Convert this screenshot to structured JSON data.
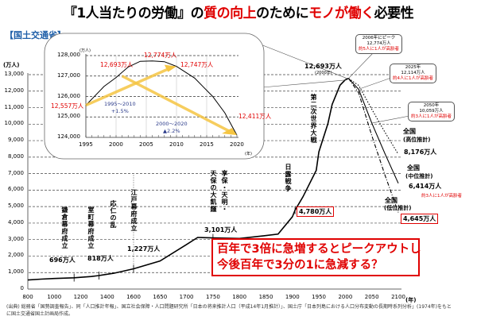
{
  "title": {
    "part1": "『1人当たりの労働』の",
    "part2": "質の向上",
    "part3": "のために",
    "part4": "モノが働く",
    "part5": "必要性"
  },
  "source_label": "【国土交通省】",
  "colors": {
    "accent_red": "#e00000",
    "source_blue": "#1f5fa8",
    "arrow_yellow": "#f5c542"
  },
  "chart_data": [
    {
      "type": "line",
      "ylabel": "(万人)",
      "xlabel": "(年)",
      "ylim": [
        0,
        13000
      ],
      "yticks": [
        "0",
        "1,000",
        "2,000",
        "3,000",
        "4,000",
        "5,000",
        "6,000",
        "7,000",
        "8,000",
        "9,000",
        "10,000",
        "11,000",
        "12,000",
        "13,000"
      ],
      "xticks": [
        "800",
        "1000",
        "1200",
        "1400",
        "1600",
        "1650",
        "1700",
        "1750",
        "1800",
        "1850",
        "1900",
        "1950",
        "2000",
        "2050",
        "2100"
      ],
      "grid": "horizontal dashed",
      "series": [
        {
          "name": "",
          "style": "solid",
          "points": [
            [
              800,
              551
            ],
            [
              900,
              600
            ],
            [
              1000,
              640
            ],
            [
              1150,
              684
            ],
            [
              1280,
              760
            ],
            [
              1338,
              818
            ],
            [
              1450,
              960
            ],
            [
              1600,
              1227
            ],
            [
              1650,
              1700
            ],
            [
              1700,
              2700
            ],
            [
              1721,
              3128
            ],
            [
              1750,
              3101
            ],
            [
              1800,
              3065
            ],
            [
              1846,
              3230
            ],
            [
              1873,
              3330
            ],
            [
              1900,
              4385
            ],
            [
              1905,
              4780
            ],
            [
              1920,
              5596
            ],
            [
              1945,
              7200
            ],
            [
              1950,
              8320
            ],
            [
              1967,
              10020
            ],
            [
              1975,
              11194
            ],
            [
              1990,
              12361
            ],
            [
              2000,
              12693
            ],
            [
              2006,
              12774
            ]
          ]
        },
        {
          "name": "全国（中位推計）",
          "style": "solid",
          "points": [
            [
              2006,
              12774
            ],
            [
              2025,
              12114
            ],
            [
              2050,
              10059
            ],
            [
              2075,
              8200
            ],
            [
              2100,
              6414
            ]
          ]
        },
        {
          "name": "全国（高位推計）",
          "style": "dotted",
          "points": [
            [
              2006,
              12774
            ],
            [
              2025,
              12350
            ],
            [
              2050,
              10900
            ],
            [
              2075,
              9500
            ],
            [
              2100,
              8176
            ]
          ]
        },
        {
          "name": "全国（低位推計）",
          "style": "dashdot",
          "points": [
            [
              2006,
              12774
            ],
            [
              2025,
              11900
            ],
            [
              2050,
              9300
            ],
            [
              2075,
              6900
            ],
            [
              2100,
              4645
            ]
          ]
        }
      ],
      "annotations": {
        "kamakura": "鎌倉幕府成立",
        "muromachi": "室町幕府成立",
        "onin": "応仁の乱",
        "edo": "江戸幕府成立",
        "famine_1": "享保・天明・",
        "famine_2": "天保の大飢饉",
        "russo_japanese": "日露戦争",
        "ww2": "第二次世界大戦",
        "v696": "696万人",
        "v818": "818万人",
        "v1227": "1,227万人",
        "v3101": "3,101万人",
        "v4780": "4,780万人",
        "v12693": "12,693万人",
        "v12693_year": "(2000年)",
        "high_name_1": "全国",
        "high_name_2": "(高位推計)",
        "high_value": "8,176万人",
        "mid_name_1": "全国",
        "mid_name_2": "(中位推計)",
        "mid_value": "6,414万人",
        "mid_note": "約3人に1人が高齢者",
        "low_name_1": "全国",
        "low_name_2": "(低位推計)",
        "low_value": "4,645万人"
      },
      "callouts": [
        {
          "line1": "2006年にピーク",
          "line2": "12,774万人",
          "line3": "約5人に1人が高齢者"
        },
        {
          "line1": "2025年",
          "line2": "12,114万人",
          "line3": "約4人に1人が高齢者"
        },
        {
          "line1": "2050年",
          "line2": "10,059万人",
          "line3": "約3人に1人が高齢者"
        }
      ],
      "message_line1": "百年で3倍に急増するとピークアウトし",
      "message_line2": "今後百年で3分の1に急減する？"
    },
    {
      "type": "line",
      "ylabel": "(万人)",
      "xlabel": "(年)",
      "ylim": [
        124000,
        128000
      ],
      "xlim": [
        1995,
        2020
      ],
      "yticks": [
        "124,000",
        "125,000",
        "126,000",
        "127,000",
        "128,000"
      ],
      "xticks": [
        "1995",
        "2000",
        "2005",
        "2010",
        "2015",
        "2020"
      ],
      "series": [
        {
          "name": "",
          "points": [
            [
              1995,
              12557
            ],
            [
              1998,
              12649
            ],
            [
              2000,
              12693
            ],
            [
              2002,
              12744
            ],
            [
              2004,
              12772
            ],
            [
              2006,
              12774
            ],
            [
              2008,
              12770
            ],
            [
              2010,
              12747
            ],
            [
              2013,
              12690
            ],
            [
              2016,
              12600
            ],
            [
              2018,
              12520
            ],
            [
              2020,
              12411
            ]
          ]
        }
      ],
      "labels": {
        "v1995": "12,557万人",
        "v2000": "12,693万人",
        "v2005": "12,774万人",
        "v2010": "12,747万人",
        "v2020": "12,411万人"
      },
      "arrows": [
        {
          "label1": "1995～2010",
          "label2": "+1.5%"
        },
        {
          "label1": "2000～2020",
          "label2": "▲2.2%"
        }
      ]
    }
  ],
  "footnote": "(出典) 総務省「国勢調査報告」、同「人口推計年報」、国立社会保障・人口問題研究所「日本の将来推計人口（平成14年1月推計）」、国土庁「日本列島における人口分布変動の長期時系列分析」(1974年)をもとに国土交通省国土計画局作成。"
}
